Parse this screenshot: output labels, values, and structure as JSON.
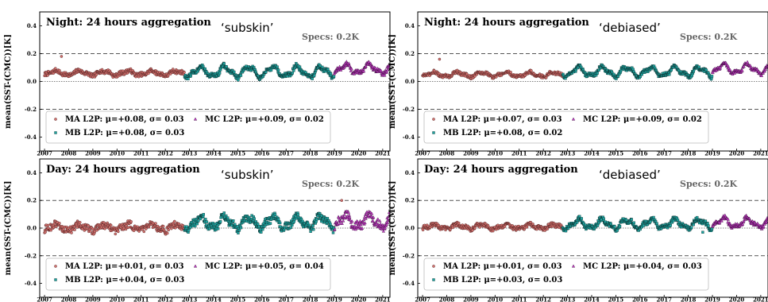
{
  "figure": {
    "ylabel": "mean(SST-(CMC))[K]",
    "specs_label": "Specs: 0.2K",
    "colors": {
      "MA": "#d2716e",
      "MB": "#1fa3a0",
      "MC": "#c23cc4",
      "ref": "#555555"
    }
  },
  "chart_data": [
    {
      "type": "scatter",
      "title": "Night: 24 hours aggregation",
      "annotation": "‘subskin’",
      "specs": "Specs: 0.2K",
      "ylabel": "mean(SST-(CMC))[K]",
      "xlim": [
        2006.8,
        2021.3
      ],
      "ylim": [
        -0.5,
        0.5
      ],
      "xticks": [
        "2007",
        "2008",
        "2009",
        "2010",
        "2011",
        "2012",
        "2013",
        "2014",
        "2015",
        "2016",
        "2017",
        "2018",
        "2019",
        "2020",
        "2021"
      ],
      "yticks": [
        "0.4",
        "0.2",
        "0.0",
        "-0.2",
        "-0.4"
      ],
      "ref_lines": [
        {
          "y": 0.2,
          "style": "dashed"
        },
        {
          "y": 0.0,
          "style": "dotted"
        },
        {
          "y": -0.2,
          "style": "dashed"
        }
      ],
      "series": [
        {
          "key": "MA",
          "legend": "MA L2P: μ=+0.08, σ= 0.03",
          "marker": "circle",
          "color": "#d2716e",
          "x_range": [
            2007.0,
            2012.8
          ],
          "mean": 0.06,
          "wobble": 0.015,
          "noise": 0.015,
          "outliers": [
            {
              "x": 2007.7,
              "y": 0.18
            }
          ]
        },
        {
          "key": "MB",
          "legend": "MB L2P: μ=+0.08, σ= 0.03",
          "marker": "square",
          "color": "#1fa3a0",
          "x_range": [
            2012.8,
            2019.0
          ],
          "mean": 0.07,
          "wobble": 0.035,
          "noise": 0.015,
          "outliers": []
        },
        {
          "key": "MC",
          "legend": "MC L2P: μ=+0.09, σ= 0.02",
          "marker": "triangle",
          "color": "#c23cc4",
          "x_range": [
            2019.0,
            2021.3
          ],
          "mean": 0.09,
          "wobble": 0.03,
          "noise": 0.015,
          "outliers": []
        }
      ]
    },
    {
      "type": "scatter",
      "title": "Night: 24 hours aggregation",
      "annotation": "‘debiased’",
      "specs": "Specs: 0.2K",
      "ylabel": "mean(SST-(CMC))[K]",
      "xlim": [
        2006.8,
        2021.3
      ],
      "ylim": [
        -0.5,
        0.5
      ],
      "xticks": [
        "2007",
        "2008",
        "2009",
        "2010",
        "2011",
        "2012",
        "2013",
        "2014",
        "2015",
        "2016",
        "2017",
        "2018",
        "2019",
        "2020",
        "2021"
      ],
      "yticks": [
        "0.4",
        "0.2",
        "0.0",
        "-0.2",
        "-0.4"
      ],
      "ref_lines": [
        {
          "y": 0.2,
          "style": "dashed"
        },
        {
          "y": 0.0,
          "style": "dotted"
        },
        {
          "y": -0.2,
          "style": "dashed"
        }
      ],
      "series": [
        {
          "key": "MA",
          "legend": "MA L2P: μ=+0.07, σ= 0.03",
          "marker": "circle",
          "color": "#d2716e",
          "x_range": [
            2007.0,
            2012.8
          ],
          "mean": 0.05,
          "wobble": 0.015,
          "noise": 0.012,
          "outliers": [
            {
              "x": 2007.7,
              "y": 0.16
            }
          ]
        },
        {
          "key": "MB",
          "legend": "MB L2P: μ=+0.08, σ= 0.02",
          "marker": "square",
          "color": "#1fa3a0",
          "x_range": [
            2012.8,
            2019.0
          ],
          "mean": 0.07,
          "wobble": 0.03,
          "noise": 0.012,
          "outliers": []
        },
        {
          "key": "MC",
          "legend": "MC L2P: μ=+0.09, σ= 0.02",
          "marker": "triangle",
          "color": "#c23cc4",
          "x_range": [
            2019.0,
            2021.3
          ],
          "mean": 0.09,
          "wobble": 0.03,
          "noise": 0.012,
          "outliers": []
        }
      ]
    },
    {
      "type": "scatter",
      "title": "Day: 24 hours aggregation",
      "annotation": "‘subskin’",
      "specs": "Specs: 0.2K",
      "ylabel": "mean(SST-(CMC))[K]",
      "xlim": [
        2006.8,
        2021.3
      ],
      "ylim": [
        -0.5,
        0.5
      ],
      "xticks": [
        "2007",
        "2008",
        "2009",
        "2010",
        "2011",
        "2012",
        "2013",
        "2014",
        "2015",
        "2016",
        "2017",
        "2018",
        "2019",
        "2020",
        "2021"
      ],
      "yticks": [
        "0.4",
        "0.2",
        "0.0",
        "-0.2",
        "-0.4"
      ],
      "ref_lines": [
        {
          "y": 0.2,
          "style": "dashed"
        },
        {
          "y": 0.0,
          "style": "dotted"
        },
        {
          "y": -0.2,
          "style": "dashed"
        }
      ],
      "series": [
        {
          "key": "MA",
          "legend": "MA L2P: μ=+0.01, σ= 0.03",
          "marker": "circle",
          "color": "#d2716e",
          "x_range": [
            2007.0,
            2012.8
          ],
          "mean": 0.005,
          "wobble": 0.02,
          "noise": 0.025,
          "outliers": [
            {
              "x": 2019.3,
              "y": 0.2
            }
          ]
        },
        {
          "key": "MB",
          "legend": "MB L2P: μ=+0.04, σ= 0.03",
          "marker": "square",
          "color": "#1fa3a0",
          "x_range": [
            2012.8,
            2019.0
          ],
          "mean": 0.04,
          "wobble": 0.04,
          "noise": 0.025,
          "outliers": []
        },
        {
          "key": "MC",
          "legend": "MC L2P: μ=+0.05, σ= 0.04",
          "marker": "triangle",
          "color": "#c23cc4",
          "x_range": [
            2019.0,
            2021.3
          ],
          "mean": 0.05,
          "wobble": 0.04,
          "noise": 0.03,
          "outliers": []
        }
      ]
    },
    {
      "type": "scatter",
      "title": "Day: 24 hours aggregation",
      "annotation": "‘debiased’",
      "specs": "Specs: 0.2K",
      "ylabel": "mean(SST-(CMC))[K]",
      "xlim": [
        2006.8,
        2021.3
      ],
      "ylim": [
        -0.5,
        0.5
      ],
      "xticks": [
        "2007",
        "2008",
        "2009",
        "2010",
        "2011",
        "2012",
        "2013",
        "2014",
        "2015",
        "2016",
        "2017",
        "2018",
        "2019",
        "2020",
        "2021"
      ],
      "yticks": [
        "0.4",
        "0.2",
        "0.0",
        "-0.2",
        "-0.4"
      ],
      "ref_lines": [
        {
          "y": 0.2,
          "style": "dashed"
        },
        {
          "y": 0.0,
          "style": "dotted"
        },
        {
          "y": -0.2,
          "style": "dashed"
        }
      ],
      "series": [
        {
          "key": "MA",
          "legend": "MA L2P: μ=+0.01, σ= 0.03",
          "marker": "circle",
          "color": "#d2716e",
          "x_range": [
            2007.0,
            2012.8
          ],
          "mean": 0.01,
          "wobble": 0.015,
          "noise": 0.015,
          "outliers": []
        },
        {
          "key": "MB",
          "legend": "MB L2P: μ=+0.03, σ= 0.03",
          "marker": "square",
          "color": "#1fa3a0",
          "x_range": [
            2012.8,
            2019.0
          ],
          "mean": 0.03,
          "wobble": 0.03,
          "noise": 0.015,
          "outliers": [
            {
              "x": 2018.6,
              "y": -0.03
            }
          ]
        },
        {
          "key": "MC",
          "legend": "MC L2P: μ=+0.04, σ= 0.03",
          "marker": "triangle",
          "color": "#c23cc4",
          "x_range": [
            2019.0,
            2021.3
          ],
          "mean": 0.04,
          "wobble": 0.03,
          "noise": 0.015,
          "outliers": []
        }
      ]
    }
  ]
}
